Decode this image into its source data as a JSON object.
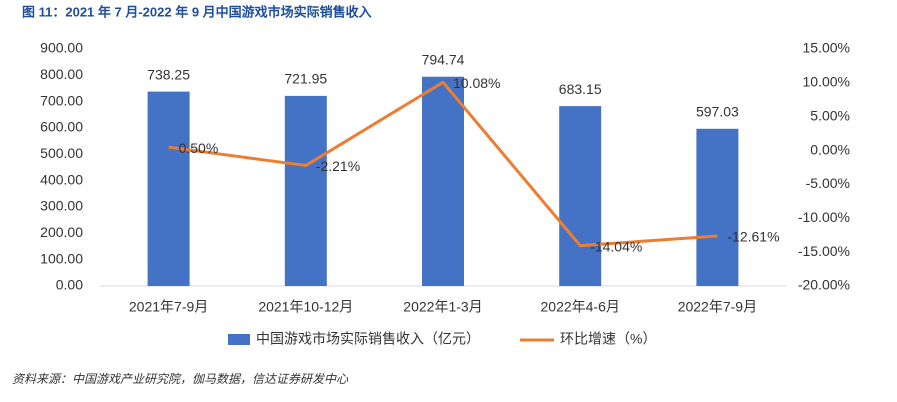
{
  "chart_data": {
    "type": "combo",
    "title": "图 11：2021 年 7 月-2022 年 9 月中国游戏市场实际销售收入",
    "source": "资料来源：中国游戏产业研究院，伽马数据，信达证券研发中心",
    "categories": [
      "2021年7-9月",
      "2021年10-12月",
      "2022年1-3月",
      "2022年4-6月",
      "2022年7-9月"
    ],
    "series": [
      {
        "name": "中国游戏市场实际销售收入（亿元）",
        "type": "bar",
        "color": "#4472c4",
        "values": [
          738.25,
          721.95,
          794.74,
          683.15,
          597.03
        ]
      },
      {
        "name": "环比增速（%）",
        "type": "line",
        "color": "#ed7d31",
        "axis": "y2",
        "values": [
          0.5,
          -2.21,
          10.08,
          -14.04,
          -12.61
        ],
        "value_labels": [
          "0.50%",
          "-2.21%",
          "10.08%",
          "-14.04%",
          "-12.61%"
        ]
      }
    ],
    "ylim": [
      0,
      900
    ],
    "yticks": [
      {
        "value": 0,
        "label": "0.00"
      },
      {
        "value": 100,
        "label": "100.00"
      },
      {
        "value": 200,
        "label": "200.00"
      },
      {
        "value": 300,
        "label": "300.00"
      },
      {
        "value": 400,
        "label": "400.00"
      },
      {
        "value": 500,
        "label": "500.00"
      },
      {
        "value": 600,
        "label": "600.00"
      },
      {
        "value": 700,
        "label": "700.00"
      },
      {
        "value": 800,
        "label": "800.00"
      },
      {
        "value": 900,
        "label": "900.00"
      }
    ],
    "y2lim": [
      -20,
      15
    ],
    "y2ticks": [
      {
        "value": -20,
        "label": "-20.00%"
      },
      {
        "value": -15,
        "label": "-15.00%"
      },
      {
        "value": -10,
        "label": "-10.00%"
      },
      {
        "value": -5,
        "label": "-5.00%"
      },
      {
        "value": 0,
        "label": "0.00%"
      },
      {
        "value": 5,
        "label": "5.00%"
      },
      {
        "value": 10,
        "label": "10.00%"
      },
      {
        "value": 15,
        "label": "15.00%"
      }
    ],
    "grid": false
  }
}
